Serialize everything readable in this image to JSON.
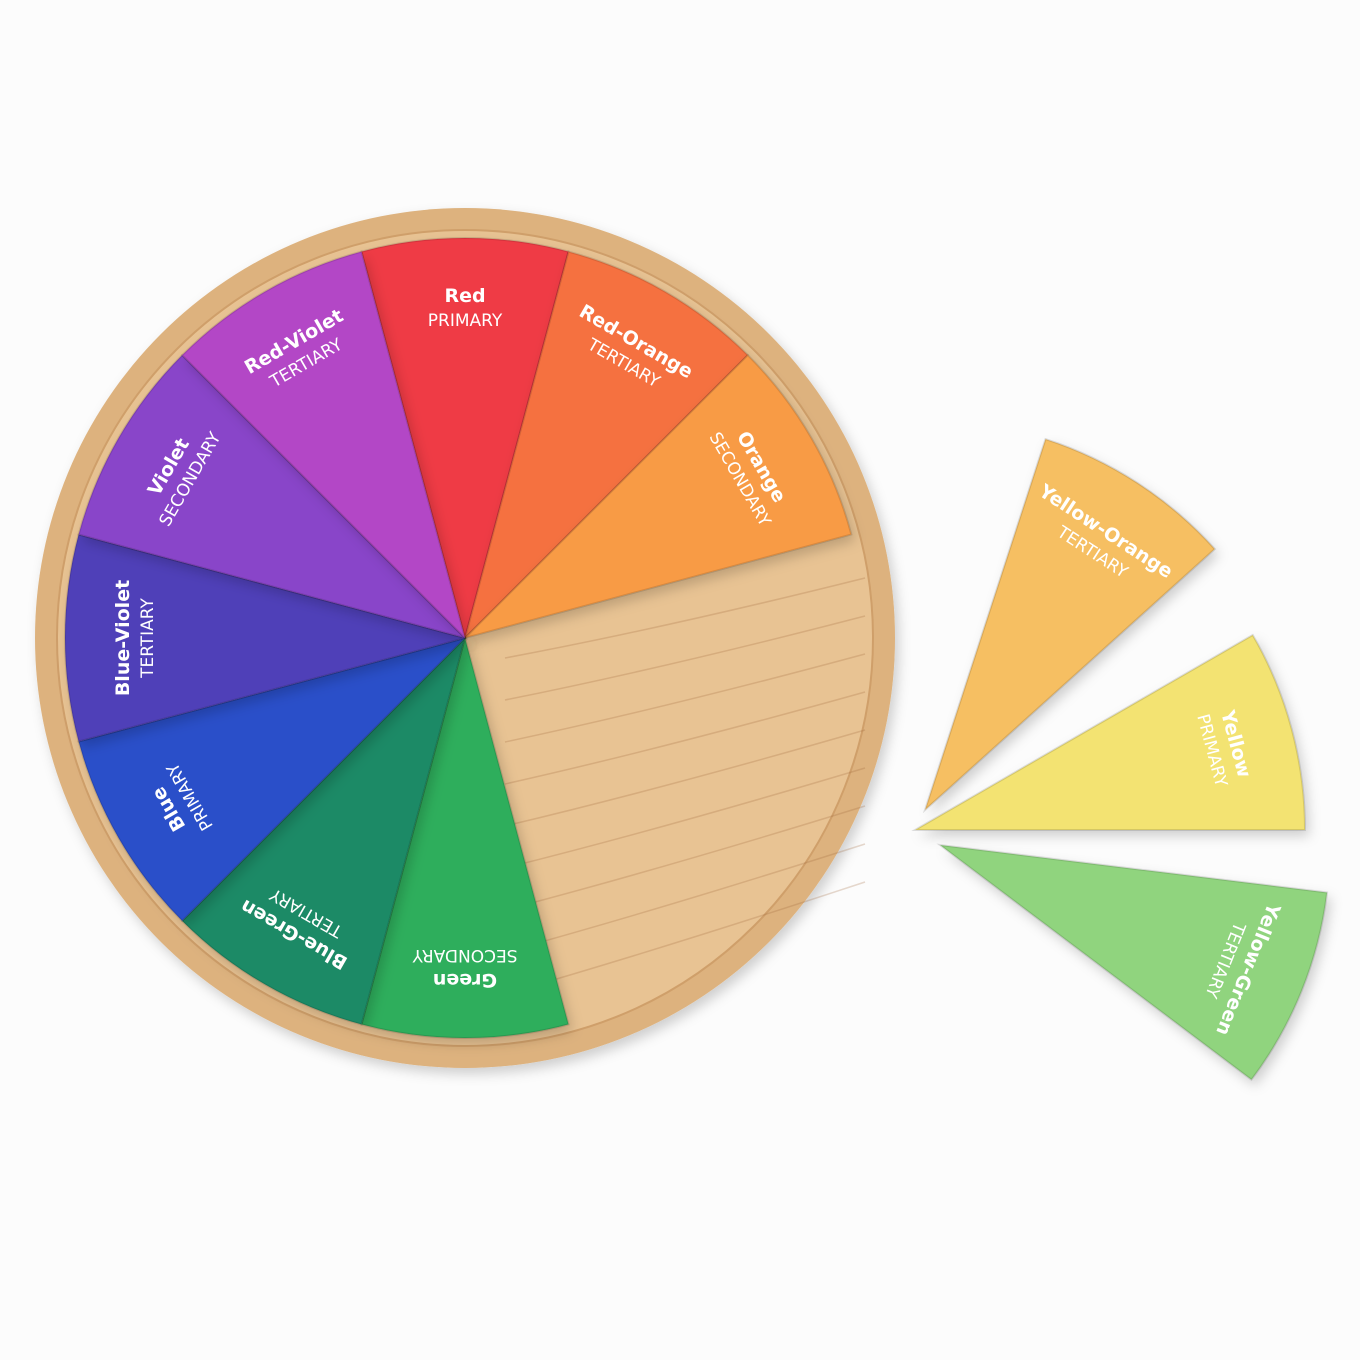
{
  "wheel": {
    "base_color": "#e8c393",
    "rim_color": "#ddb27e",
    "pieces": [
      {
        "name": "Red",
        "category": "PRIMARY",
        "color": "#ef3b45"
      },
      {
        "name": "Red-Orange",
        "category": "TERTIARY",
        "color": "#f5713f"
      },
      {
        "name": "Orange",
        "category": "SECONDARY",
        "color": "#f89b45"
      },
      {
        "name": "Green",
        "category": "SECONDARY",
        "color": "#2fae5c"
      },
      {
        "name": "Blue-Green",
        "category": "TERTIARY",
        "color": "#1c8a66"
      },
      {
        "name": "Blue",
        "category": "PRIMARY",
        "color": "#2c4fc9"
      },
      {
        "name": "Blue-Violet",
        "category": "TERTIARY",
        "color": "#5040b8"
      },
      {
        "name": "Violet",
        "category": "SECONDARY",
        "color": "#8944c9"
      },
      {
        "name": "Red-Violet",
        "category": "TERTIARY",
        "color": "#b347c6"
      }
    ]
  },
  "loose_pieces": [
    {
      "name": "Yellow-Orange",
      "category": "TERTIARY",
      "color": "#f6bf62"
    },
    {
      "name": "Yellow",
      "category": "PRIMARY",
      "color": "#f3e372"
    },
    {
      "name": "Yellow-Green",
      "category": "TERTIARY",
      "color": "#90d47e"
    }
  ]
}
